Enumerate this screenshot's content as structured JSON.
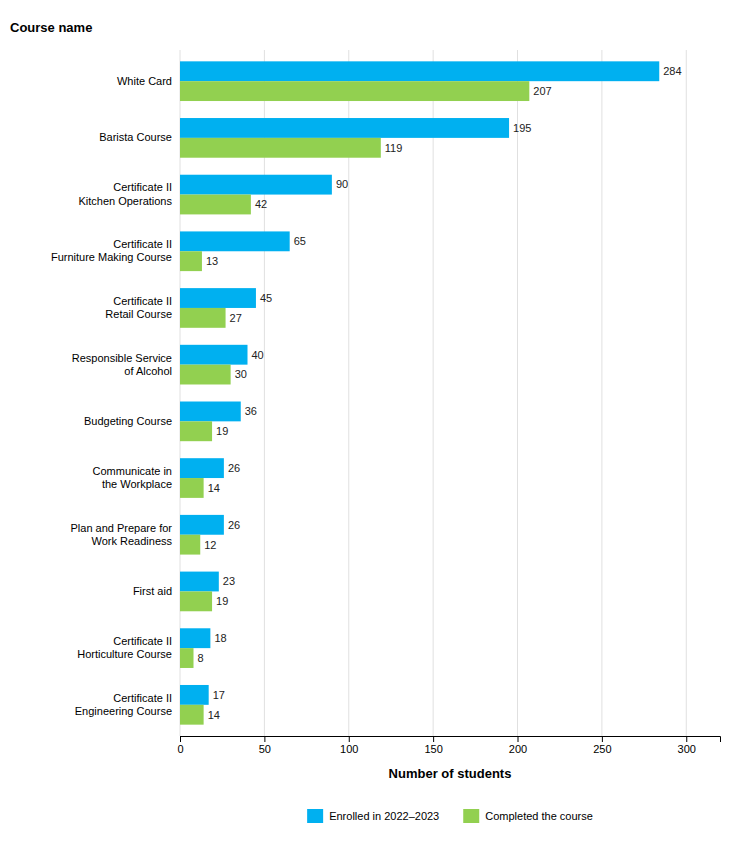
{
  "chart_data": {
    "type": "bar",
    "orientation": "horizontal",
    "ylabel": "Course name",
    "xlabel": "Number of students",
    "categories": [
      "Certificate II\nEngineering Course",
      "Certificate II\nHorticulture Course",
      "First aid",
      "Plan and Prepare for\nWork Readiness",
      "Communicate in\nthe Workplace",
      "Budgeting Course",
      "Responsible Service\nof Alcohol",
      "Certificate II\nRetail Course",
      "Certificate II\nFurniture Making Course",
      "Certificate II\nKitchen Operations",
      "Barista Course",
      "White Card"
    ],
    "series": [
      {
        "name": "Enrolled in 2022–2023",
        "color": "#00b0f0",
        "values": [
          17,
          18,
          23,
          26,
          26,
          36,
          40,
          45,
          65,
          90,
          195,
          284
        ]
      },
      {
        "name": "Completed the course",
        "color": "#92d050",
        "values": [
          14,
          8,
          19,
          12,
          14,
          19,
          30,
          27,
          13,
          42,
          119,
          207
        ]
      }
    ],
    "xlim": [
      0,
      320
    ],
    "xticks": [
      0,
      50,
      100,
      150,
      200,
      250,
      300
    ],
    "grid": true,
    "data_labels": true,
    "legend": "bottom"
  }
}
